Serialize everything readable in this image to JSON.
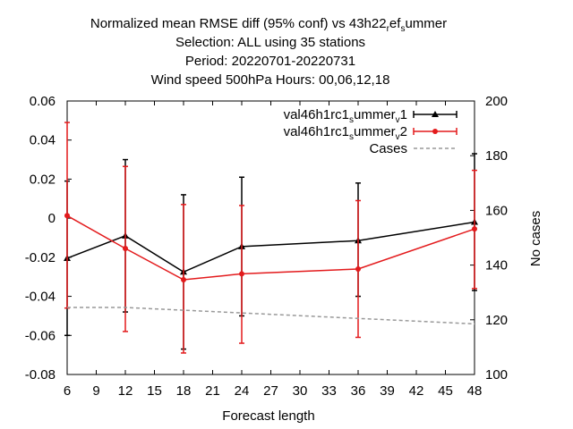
{
  "chart_data": {
    "type": "line",
    "title_lines": [
      "Normalized mean RMSE diff (95% conf) vs 43h22",
      "Selection: ALL using    35 stations",
      "Period: 20220701-20220731",
      "Wind speed 500hPa   Hours:  00,06,12,18"
    ],
    "title_line1_parts": {
      "a": "Normalized mean RMSE diff (95% conf) vs 43h22",
      "s1": "r",
      "b": "ef",
      "s2": "s",
      "c": "ummer"
    },
    "xlabel": "Forecast length",
    "ylabel": "",
    "y2label": "No cases",
    "x": [
      6,
      12,
      18,
      24,
      36,
      48
    ],
    "xlim": [
      6,
      48
    ],
    "xticks": [
      "6",
      "9",
      "12",
      "15",
      "18",
      "21",
      "24",
      "27",
      "30",
      "33",
      "36",
      "39",
      "42",
      "45",
      "48"
    ],
    "ylim": [
      -0.08,
      0.06
    ],
    "yticks": [
      "0.06",
      "0.04",
      "0.02",
      "0",
      "-0.02",
      "-0.04",
      "-0.06",
      "-0.08"
    ],
    "y2lim": [
      100,
      200
    ],
    "y2ticks": [
      "200",
      "180",
      "160",
      "140",
      "120",
      "100"
    ],
    "legend_position": "top-right",
    "series": [
      {
        "name": "val46h1rc1_summer_v1",
        "label_parts": {
          "a": "val46h1rc1",
          "s1": "s",
          "b": "ummer",
          "s2": "v",
          "c": "1"
        },
        "color": "#000000",
        "marker": "triangle",
        "values": [
          -0.0205,
          -0.009,
          -0.0275,
          -0.0145,
          -0.0115,
          -0.002
        ],
        "err_low": [
          -0.06,
          -0.048,
          -0.067,
          -0.05,
          -0.04,
          -0.037
        ],
        "err_high": [
          0.019,
          0.03,
          0.012,
          0.021,
          0.018,
          0.033
        ]
      },
      {
        "name": "val46h1rc1_summer_v2",
        "label_parts": {
          "a": "val46h1rc1",
          "s1": "s",
          "b": "ummer",
          "s2": "v",
          "c": "2"
        },
        "color": "#e31a1c",
        "marker": "circle",
        "values": [
          0.0013,
          -0.0155,
          -0.0315,
          -0.0285,
          -0.026,
          -0.0055
        ],
        "err_low": [
          -0.046,
          -0.058,
          -0.069,
          -0.064,
          -0.061,
          -0.036
        ],
        "err_high": [
          0.049,
          0.0265,
          0.007,
          0.0065,
          0.009,
          0.0245
        ]
      },
      {
        "name": "Cases",
        "color": "#999999",
        "dashed": true,
        "axis": "y2",
        "values": [
          124.5,
          124.5,
          123.5,
          122.5,
          120.5,
          118.5
        ]
      }
    ]
  }
}
